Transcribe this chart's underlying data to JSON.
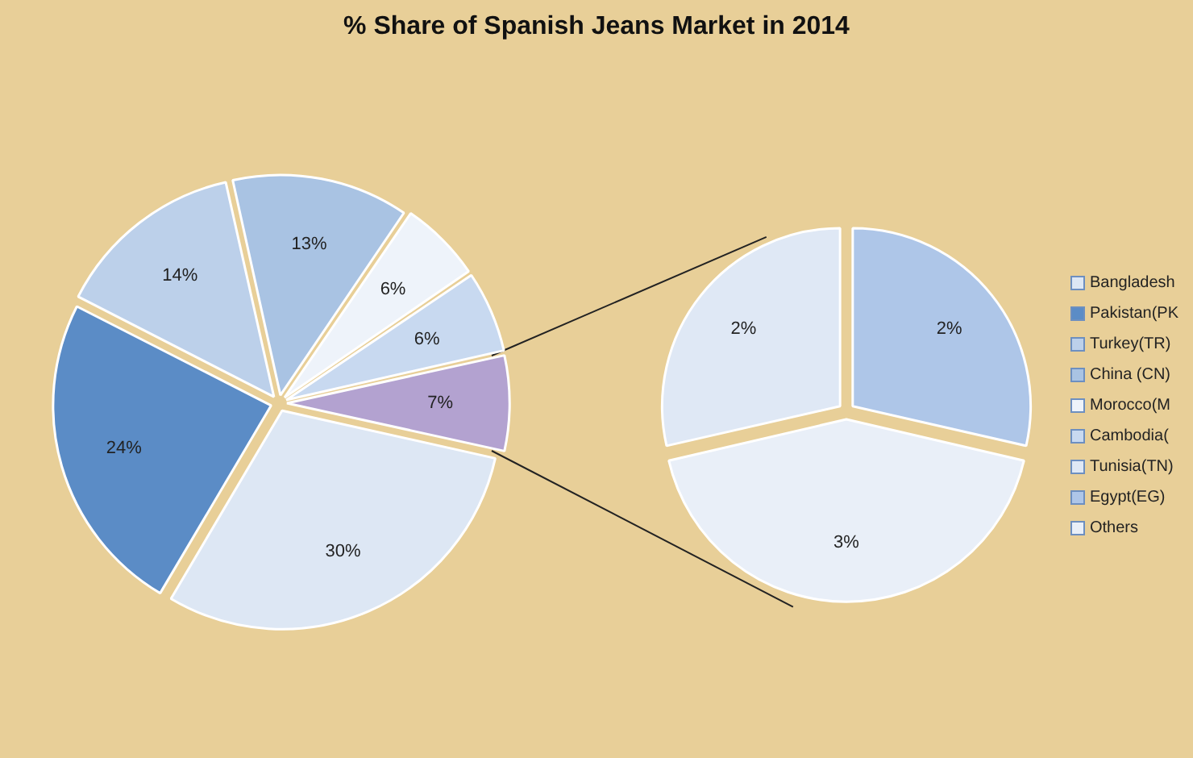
{
  "chart_data": [
    {
      "type": "pie",
      "title": "% Share of Spanish Jeans Market in 2014",
      "categories": [
        "Bangladesh",
        "Pakistan(PK",
        "Turkey(TR)",
        "China (CN)",
        "Morocco(M",
        "Cambodia(",
        null
      ],
      "values": [
        30,
        24,
        14,
        13,
        6,
        6,
        7
      ],
      "colors": [
        "#dde7f4",
        "#5b8cc6",
        "#bcd0ea",
        "#a9c3e3",
        "#eef3fa",
        "#c8d9f0",
        "#b3a2d0"
      ],
      "value_labels": [
        "30%",
        "24%",
        "14%",
        "13%",
        "6%",
        "6%",
        "7%"
      ],
      "legend": "right"
    },
    {
      "type": "pie",
      "categories": [
        "Tunisia(TN)",
        "Egypt(EG)",
        "Others"
      ],
      "values": [
        2,
        2,
        3
      ],
      "colors": [
        "#dfe8f5",
        "#aec6e8",
        "#e9eff8"
      ],
      "value_labels": [
        "2%",
        "2%",
        "3%"
      ],
      "legend": "right"
    }
  ]
}
